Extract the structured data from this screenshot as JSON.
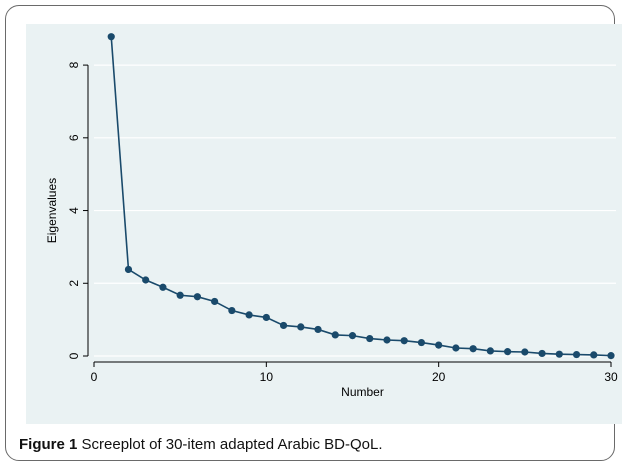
{
  "chart_data": {
    "type": "line",
    "title": "",
    "xlabel": "Number",
    "ylabel": "Eigenvalues",
    "xlim": [
      0,
      30
    ],
    "ylim": [
      0,
      8.8
    ],
    "xticks": [
      0,
      10,
      20,
      30
    ],
    "yticks": [
      0,
      2,
      4,
      6,
      8
    ],
    "grid": true,
    "colors": {
      "series": "#1a4a6b",
      "plot_bg": "#eaf2f3",
      "grid": "#ffffff"
    },
    "series": [
      {
        "x": [
          1,
          2,
          3,
          4,
          5,
          6,
          7,
          8,
          9,
          10,
          11,
          12,
          13,
          14,
          15,
          16,
          17,
          18,
          19,
          20,
          21,
          22,
          23,
          24,
          25,
          26,
          27,
          28,
          29,
          30
        ],
        "values": [
          8.78,
          2.38,
          2.09,
          1.89,
          1.67,
          1.63,
          1.5,
          1.25,
          1.13,
          1.06,
          0.84,
          0.8,
          0.73,
          0.58,
          0.56,
          0.48,
          0.44,
          0.42,
          0.37,
          0.3,
          0.22,
          0.2,
          0.14,
          0.12,
          0.11,
          0.07,
          0.05,
          0.04,
          0.03,
          0.01
        ]
      }
    ]
  },
  "caption": {
    "label": "Figure 1",
    "text": "Screeplot of 30-item adapted Arabic BD-QoL."
  }
}
